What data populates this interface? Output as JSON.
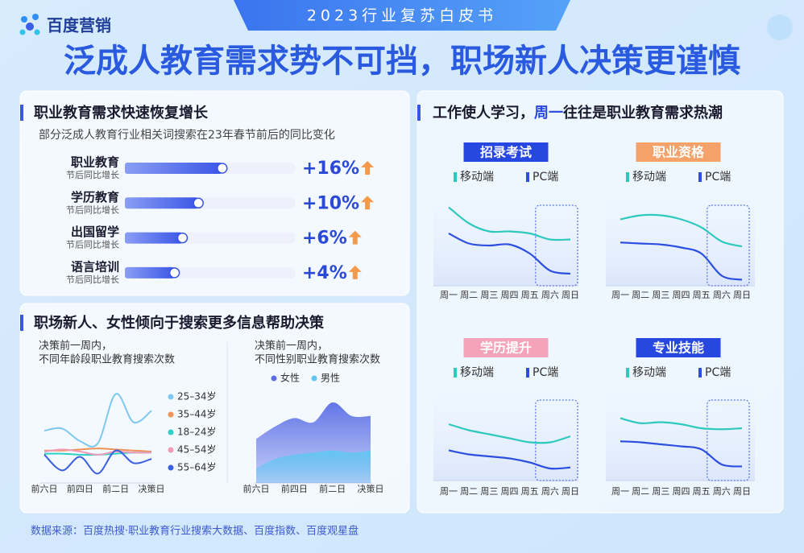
{
  "header": {
    "brand": "百度营销",
    "banner": "2023行业复苏白皮书",
    "title": "泛成人教育需求势不可挡，职场新人决策更谨慎"
  },
  "panels": [
    {
      "title": "职业教育需求快速恢复增长",
      "subtitle": "部分泛成人教育行业相关词搜索在23年春节前后的同比变化"
    },
    {
      "title": [
        "工作使人学习，",
        "周一",
        "往往是职业教育需求热潮"
      ]
    },
    {
      "title": "职场新人、女性倾向于搜索更多信息帮助决策"
    }
  ],
  "footer": "数据来源：百度热搜·职业教育行业搜索大数据、百度指数、百度观星盘",
  "chart_data": [
    {
      "type": "bar",
      "categories": [
        "职业教育",
        "学历教育",
        "出国留学",
        "语言培训"
      ],
      "category_note": "节后同比增长",
      "values": [
        16,
        10,
        6,
        4
      ],
      "value_labels": [
        "+16%",
        "+10%",
        "+6%",
        "+4%"
      ],
      "xlim": [
        -8.5,
        34.5
      ],
      "color": "#3b56e6",
      "label_color": "#2b49d8",
      "arrow_color": "#f59a4a"
    },
    {
      "type": "line",
      "title": "招录考试",
      "title_color": "#2748e0",
      "categories": [
        "周一",
        "周二",
        "周三",
        "周四",
        "周五",
        "周六",
        "周日"
      ],
      "ylim": [
        0,
        100
      ],
      "series": [
        {
          "name": "移动端",
          "color": "#2ec9bd",
          "values": [
            78,
            62,
            54,
            54,
            52,
            46,
            46
          ]
        },
        {
          "name": "PC端",
          "color": "#2d4fe0",
          "values": [
            52,
            42,
            40,
            41,
            32,
            15,
            12
          ]
        }
      ]
    },
    {
      "type": "line",
      "title": "职业资格",
      "title_color": "#f5a16a",
      "categories": [
        "周一",
        "周二",
        "周三",
        "周四",
        "周五",
        "周六",
        "周日"
      ],
      "ylim": [
        0,
        100
      ],
      "series": [
        {
          "name": "移动端",
          "color": "#2ec9bd",
          "values": [
            66,
            70,
            70,
            66,
            58,
            44,
            39
          ]
        },
        {
          "name": "PC端",
          "color": "#2d4fe0",
          "values": [
            43,
            42,
            41,
            38,
            32,
            10,
            6
          ]
        }
      ]
    },
    {
      "type": "line",
      "title": "学历提升",
      "title_color": "#f5a3b8",
      "categories": [
        "周一",
        "周二",
        "周三",
        "周四",
        "周五",
        "周六",
        "周日"
      ],
      "ylim": [
        0,
        100
      ],
      "series": [
        {
          "name": "移动端",
          "color": "#2ec9bd",
          "values": [
            56,
            50,
            46,
            42,
            38,
            38,
            44
          ]
        },
        {
          "name": "PC端",
          "color": "#2d4fe0",
          "values": [
            30,
            26,
            24,
            22,
            18,
            12,
            13
          ]
        }
      ]
    },
    {
      "type": "line",
      "title": "专业技能",
      "title_color": "#2748e0",
      "categories": [
        "周一",
        "周二",
        "周三",
        "周四",
        "周五",
        "周六",
        "周日"
      ],
      "ylim": [
        0,
        100
      ],
      "series": [
        {
          "name": "移动端",
          "color": "#2ec9bd",
          "values": [
            62,
            57,
            58,
            56,
            52,
            51,
            52
          ]
        },
        {
          "name": "PC端",
          "color": "#2d4fe0",
          "values": [
            39,
            38,
            36,
            34,
            31,
            16,
            14
          ]
        }
      ]
    },
    {
      "type": "line",
      "subtitle": [
        "决策前一周内，",
        "不同年龄段职业教育搜索次数"
      ],
      "categories": [
        "前六日",
        null,
        "前四日",
        null,
        "前二日",
        null,
        "决策日"
      ],
      "ylim": [
        0,
        100
      ],
      "series": [
        {
          "name": "25–34岁",
          "color": "#7ec8f0",
          "values": [
            50,
            52,
            40,
            38,
            85,
            58,
            69
          ]
        },
        {
          "name": "35–44岁",
          "color": "#f0915a",
          "values": [
            31,
            31,
            32,
            33,
            32,
            31,
            30
          ]
        },
        {
          "name": "18–24岁",
          "color": "#2ed0c8",
          "values": [
            28,
            28,
            27,
            27,
            28,
            29,
            29
          ]
        },
        {
          "name": "45–54岁",
          "color": "#f29ab8",
          "values": [
            30,
            32,
            30,
            27,
            30,
            29,
            29
          ]
        },
        {
          "name": "55–64岁",
          "color": "#3a5ee0",
          "values": [
            27,
            12,
            25,
            9,
            31,
            19,
            23
          ]
        }
      ]
    },
    {
      "type": "area",
      "subtitle": [
        "决策前一周内，",
        "不同性别职业教育搜索次数"
      ],
      "categories": [
        "前六日",
        null,
        "前四日",
        null,
        "前二日",
        null,
        "决策日"
      ],
      "ylim": [
        0,
        100
      ],
      "series": [
        {
          "name": "女性",
          "color": "#5b6ee6",
          "values": [
            42,
            54,
            62,
            58,
            77,
            64,
            64
          ]
        },
        {
          "name": "男性",
          "color": "#62c6f2",
          "values": [
            14,
            23,
            27,
            29,
            31,
            29,
            31
          ]
        }
      ]
    }
  ]
}
